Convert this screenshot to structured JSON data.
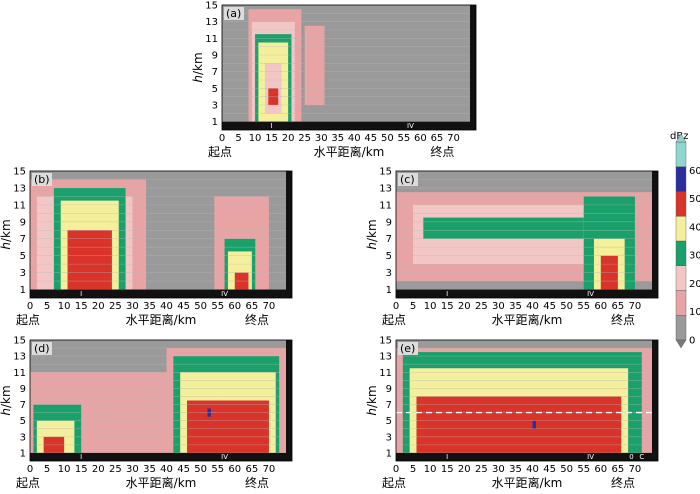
{
  "chart_data": {
    "type": "heatmap",
    "colorbar": {
      "unit": "dBz",
      "ticks": [
        0,
        10,
        20,
        30,
        40,
        50,
        60
      ],
      "colors": [
        "#9a9a9a",
        "#e8a4a4",
        "#f3c6c6",
        "#1aa06b",
        "#f4ef9a",
        "#d9332a",
        "#2b2e9c",
        "#8fd6cf"
      ]
    },
    "x_ticks": [
      0,
      5,
      10,
      15,
      20,
      25,
      30,
      35,
      40,
      45,
      50,
      55,
      60,
      65,
      70
    ],
    "y_ticks": [
      1,
      3,
      5,
      7,
      9,
      11,
      13,
      15
    ],
    "xlim": [
      0,
      75
    ],
    "ylim": [
      0,
      15
    ],
    "xlabel": "水平距离/km",
    "ylabel_h": "h",
    "ylabel_unit": "/km",
    "start_label": "起点",
    "end_label": "终点",
    "panels": [
      {
        "label": "(a)",
        "markers": [
          "I",
          "IV"
        ],
        "marker_x": [
          15,
          57
        ],
        "cells": [
          {
            "x": [
              0,
              75
            ],
            "y": [
              0,
              15
            ],
            "v": 0
          },
          {
            "x": [
              8,
              24
            ],
            "y": [
              1,
              14.5
            ],
            "v": 10
          },
          {
            "x": [
              25,
              31
            ],
            "y": [
              3,
              12.5
            ],
            "v": 10
          },
          {
            "x": [
              9,
              22
            ],
            "y": [
              1,
              13
            ],
            "v": 15
          },
          {
            "x": [
              10,
              21
            ],
            "y": [
              1,
              11.5
            ],
            "v": 25
          },
          {
            "x": [
              11,
              20
            ],
            "y": [
              1,
              10.5
            ],
            "v": 35
          },
          {
            "x": [
              13,
              18
            ],
            "y": [
              2,
              8
            ],
            "v": 15
          },
          {
            "x": [
              14,
              17
            ],
            "y": [
              3,
              5
            ],
            "v": 45
          }
        ]
      },
      {
        "label": "(b)",
        "markers": [
          "I",
          "IV"
        ],
        "marker_x": [
          15,
          57
        ],
        "cells": [
          {
            "x": [
              0,
              75
            ],
            "y": [
              0,
              15
            ],
            "v": 0
          },
          {
            "x": [
              0,
              34
            ],
            "y": [
              1,
              14
            ],
            "v": 10
          },
          {
            "x": [
              2,
              30
            ],
            "y": [
              1,
              12
            ],
            "v": 15
          },
          {
            "x": [
              7,
              28
            ],
            "y": [
              1,
              13
            ],
            "v": 25
          },
          {
            "x": [
              9,
              26
            ],
            "y": [
              1,
              11.5
            ],
            "v": 35
          },
          {
            "x": [
              11,
              24
            ],
            "y": [
              1,
              8
            ],
            "v": 45
          },
          {
            "x": [
              54,
              70
            ],
            "y": [
              1,
              12
            ],
            "v": 10
          },
          {
            "x": [
              57,
              66
            ],
            "y": [
              1,
              7
            ],
            "v": 25
          },
          {
            "x": [
              58,
              65
            ],
            "y": [
              1,
              5.5
            ],
            "v": 35
          },
          {
            "x": [
              60,
              64
            ],
            "y": [
              1,
              3
            ],
            "v": 45
          }
        ]
      },
      {
        "label": "(c)",
        "markers": [
          "I",
          "IV"
        ],
        "marker_x": [
          15,
          57
        ],
        "cells": [
          {
            "x": [
              0,
              75
            ],
            "y": [
              0,
              15
            ],
            "v": 0
          },
          {
            "x": [
              0,
              75
            ],
            "y": [
              2,
              12.5
            ],
            "v": 10
          },
          {
            "x": [
              5,
              60
            ],
            "y": [
              4,
              11
            ],
            "v": 15
          },
          {
            "x": [
              8,
              55
            ],
            "y": [
              7,
              9.5
            ],
            "v": 25
          },
          {
            "x": [
              55,
              70
            ],
            "y": [
              1,
              12
            ],
            "v": 25
          },
          {
            "x": [
              58,
              67
            ],
            "y": [
              1,
              7
            ],
            "v": 35
          },
          {
            "x": [
              60,
              65
            ],
            "y": [
              1,
              5
            ],
            "v": 45
          }
        ]
      },
      {
        "label": "(d)",
        "markers": [
          "I",
          "IV"
        ],
        "marker_x": [
          15,
          57
        ],
        "cells": [
          {
            "x": [
              0,
              75
            ],
            "y": [
              0,
              15
            ],
            "v": 0
          },
          {
            "x": [
              0,
              75
            ],
            "y": [
              1,
              11
            ],
            "v": 10
          },
          {
            "x": [
              40,
              75
            ],
            "y": [
              1,
              14
            ],
            "v": 10
          },
          {
            "x": [
              1,
              15
            ],
            "y": [
              1,
              7
            ],
            "v": 25
          },
          {
            "x": [
              2,
              13
            ],
            "y": [
              1,
              5
            ],
            "v": 35
          },
          {
            "x": [
              4,
              10
            ],
            "y": [
              1,
              3
            ],
            "v": 45
          },
          {
            "x": [
              42,
              73
            ],
            "y": [
              1,
              13
            ],
            "v": 25
          },
          {
            "x": [
              44,
              72
            ],
            "y": [
              1,
              11
            ],
            "v": 35
          },
          {
            "x": [
              46,
              70
            ],
            "y": [
              1,
              7.5
            ],
            "v": 45
          },
          {
            "x": [
              52,
              53
            ],
            "y": [
              5.5,
              6.5
            ],
            "v": 55
          }
        ]
      },
      {
        "label": "(e)",
        "markers": [
          "I",
          "IV",
          "0",
          "C"
        ],
        "marker_x": [
          15,
          57,
          69,
          72
        ],
        "dashed_level": 6,
        "cells": [
          {
            "x": [
              0,
              75
            ],
            "y": [
              0,
              15
            ],
            "v": 0
          },
          {
            "x": [
              0,
              75
            ],
            "y": [
              1,
              14
            ],
            "v": 10
          },
          {
            "x": [
              2,
              72
            ],
            "y": [
              1,
              13.5
            ],
            "v": 25
          },
          {
            "x": [
              4,
              68
            ],
            "y": [
              1,
              11.5
            ],
            "v": 35
          },
          {
            "x": [
              6,
              66
            ],
            "y": [
              1,
              8
            ],
            "v": 45
          },
          {
            "x": [
              40,
              41
            ],
            "y": [
              4,
              5
            ],
            "v": 55
          }
        ]
      }
    ]
  }
}
